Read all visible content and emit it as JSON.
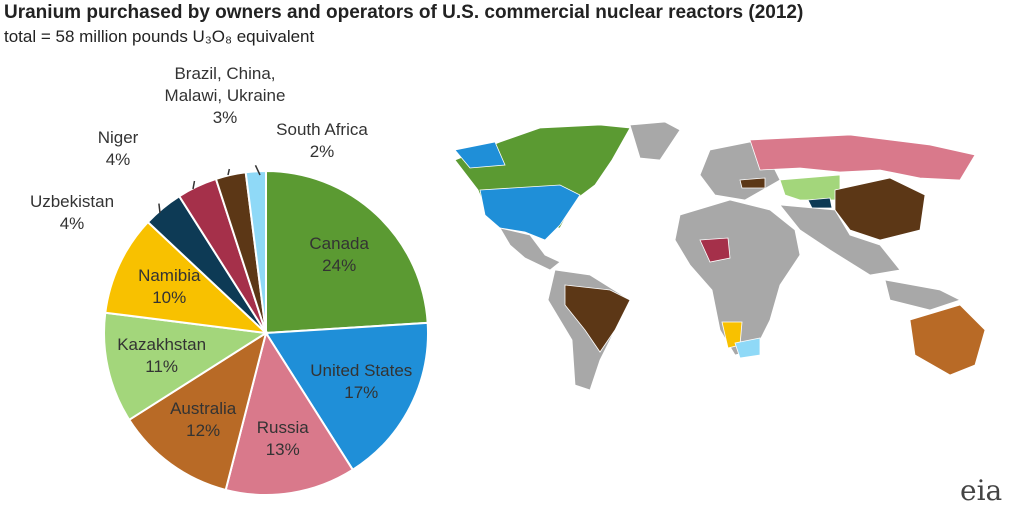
{
  "chart_data": {
    "type": "pie",
    "title": "Uranium purchased by owners and operators of U.S. commercial nuclear reactors (2012)",
    "subtitle": "total = 58 million pounds U₃O₈ equivalent",
    "categories": [
      "Canada",
      "United States",
      "Russia",
      "Australia",
      "Kazakhstan",
      "Namibia",
      "Uzbekistan",
      "Niger",
      "Brazil, China, Malawi, Ukraine",
      "South Africa"
    ],
    "values": [
      24,
      17,
      13,
      12,
      11,
      10,
      4,
      4,
      3,
      2
    ],
    "value_labels": [
      "24%",
      "17%",
      "13%",
      "12%",
      "11%",
      "10%",
      "4%",
      "4%",
      "3%",
      "2%"
    ],
    "colors": [
      "#5b9a32",
      "#1f8fd8",
      "#d9798b",
      "#b86a26",
      "#a3d67b",
      "#f8c100",
      "#0d3a55",
      "#a5304a",
      "#5c3716",
      "#8fd9f7"
    ],
    "logo": "eia"
  }
}
